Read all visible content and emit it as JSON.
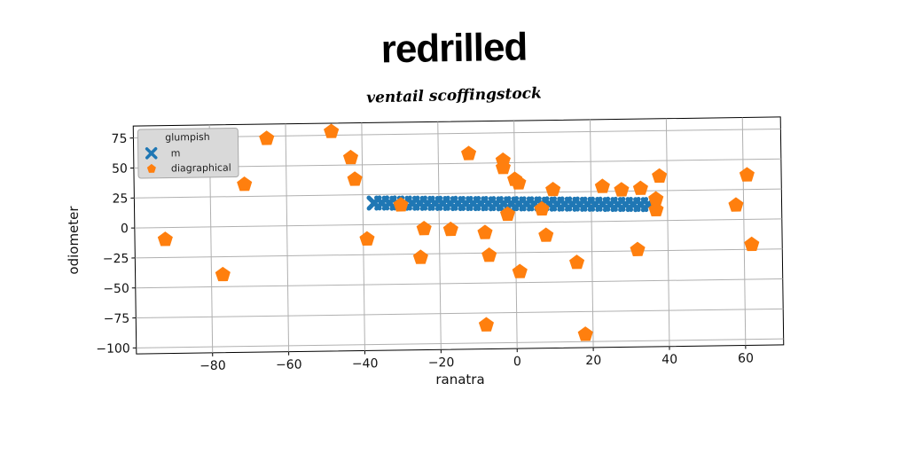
{
  "chart_data": {
    "type": "scatter",
    "title": "redrilled",
    "subtitle": "ventail scoffingstock",
    "xlabel": "ranatra",
    "ylabel": "odiometer",
    "xlim": [
      -100,
      70
    ],
    "ylim": [
      -105,
      85
    ],
    "xticks": [
      -80,
      -60,
      -40,
      -20,
      0,
      20,
      40,
      60
    ],
    "yticks": [
      75,
      50,
      25,
      0,
      -25,
      -50,
      -75,
      -100
    ],
    "grid": true,
    "legend": {
      "title": "glumpish",
      "placement": "top-left"
    },
    "series": [
      {
        "name": "m",
        "marker": "x",
        "color": "#1f77b4",
        "x": [
          -37,
          -35,
          -33,
          -31,
          -29,
          -27,
          -25,
          -23,
          -21,
          -19,
          -17,
          -15,
          -13,
          -11,
          -9,
          -7,
          -5,
          -3,
          -1,
          1,
          3,
          5,
          7,
          9,
          11,
          13,
          15,
          17,
          19,
          21,
          23,
          25,
          27,
          29,
          31,
          33,
          35
        ],
        "y": [
          18,
          17.9,
          17.8,
          17.6,
          17.5,
          17.4,
          17.3,
          17.1,
          17,
          16.9,
          16.8,
          16.6,
          16.5,
          16.4,
          16.3,
          16.1,
          16,
          15.9,
          15.8,
          15.6,
          15.5,
          15.4,
          15.3,
          15.1,
          15,
          14.9,
          14.8,
          14.6,
          14.5,
          14.4,
          14.3,
          14.1,
          14,
          13.9,
          13.8,
          13.6,
          13.5
        ]
      },
      {
        "name": "diagraphical",
        "marker": "pentagon",
        "color": "#ff7f0e",
        "x": [
          -65,
          -48,
          -43,
          -42,
          -71,
          -92,
          -77,
          -39,
          -30,
          -24,
          -25,
          -17,
          -12,
          -8,
          -7,
          -8,
          -3,
          -3,
          -2,
          0,
          1,
          1,
          7,
          8,
          10,
          16,
          18,
          23,
          28,
          33,
          37,
          37,
          38,
          32,
          58,
          61,
          62
        ],
        "y": [
          73,
          78,
          56,
          38,
          35,
          -10,
          -40,
          -12,
          16,
          -4,
          -28,
          -5,
          58,
          -8,
          -27,
          -85,
          52,
          46,
          7,
          36,
          33,
          -41,
          11,
          -11,
          27,
          -34,
          -94,
          29,
          26,
          27,
          18,
          9,
          37,
          -24,
          12,
          37,
          -21
        ]
      }
    ]
  }
}
